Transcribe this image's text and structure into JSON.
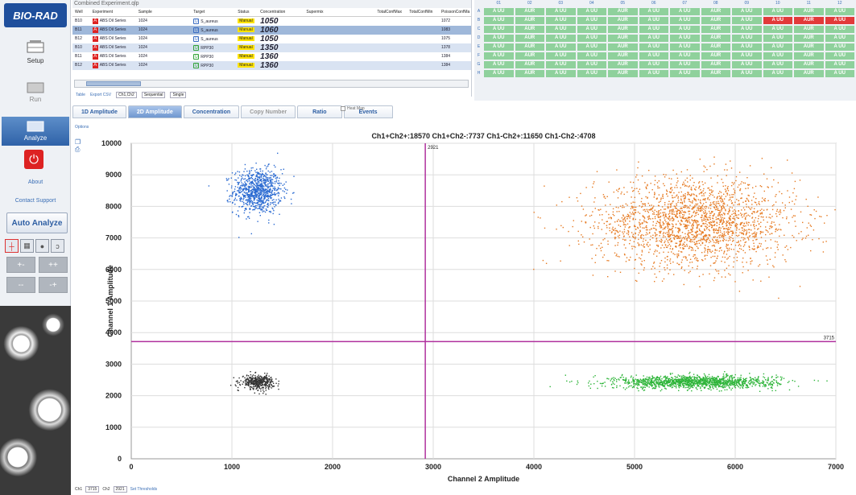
{
  "app": {
    "logo": "BIO-RAD"
  },
  "nav": {
    "setup": "Setup",
    "run": "Run",
    "analyze": "Analyze",
    "about": "About",
    "contact": "Contact Support",
    "auto_analyze": "Auto Analyze"
  },
  "quadrant_buttons": [
    "+-",
    "++",
    "--",
    "-+"
  ],
  "table": {
    "title": "Combined Experiment.qlp",
    "headers": [
      "Well",
      "Experiment",
      "Sample",
      "Target",
      "Status",
      "Concentration",
      "Supermix",
      "TotalConfMax",
      "TotalConfMin",
      "PoissonConfMa"
    ],
    "rows": [
      {
        "well": "B10",
        "experiment": "ABS Dil Series",
        "sample": "1024",
        "target": "S_aureus",
        "status": "Manual",
        "concentration": "1050",
        "poisson": "1072",
        "target_color": "blue"
      },
      {
        "well": "B11",
        "experiment": "ABS Dil Series",
        "sample": "1024",
        "target": "S_aureus",
        "status": "Manual",
        "concentration": "1060",
        "poisson": "1083",
        "target_color": "blue"
      },
      {
        "well": "B12",
        "experiment": "ABS Dil Series",
        "sample": "1024",
        "target": "S_aureus",
        "status": "Manual",
        "concentration": "1050",
        "poisson": "1075",
        "target_color": "blue"
      },
      {
        "well": "B10",
        "experiment": "ABS Dil Series",
        "sample": "1024",
        "target": "RPP30",
        "status": "Manual",
        "concentration": "1350",
        "poisson": "1378",
        "target_color": "green"
      },
      {
        "well": "B11",
        "experiment": "ABS Dil Series",
        "sample": "1024",
        "target": "RPP30",
        "status": "Manual",
        "concentration": "1360",
        "poisson": "1384",
        "target_color": "green"
      },
      {
        "well": "B12",
        "experiment": "ABS Dil Series",
        "sample": "1024",
        "target": "RPP30",
        "status": "Manual",
        "concentration": "1360",
        "poisson": "1384",
        "target_color": "green"
      }
    ],
    "options": {
      "table": "Table",
      "export": "Export CSV",
      "channels": "Ch1,Ch2",
      "mode": "Sequential",
      "single": "Single"
    }
  },
  "plate": {
    "rows": [
      "A",
      "B",
      "C",
      "D",
      "E",
      "F",
      "G",
      "H"
    ],
    "cols": [
      "01",
      "02",
      "03",
      "04",
      "05",
      "06",
      "07",
      "08",
      "09",
      "10",
      "11",
      "12"
    ]
  },
  "tabs": [
    "1D Amplitude",
    "2D Amplitude",
    "Concentration",
    "Copy Number",
    "Ratio",
    "Events"
  ],
  "heat_map": "Heat Map",
  "options_label": "Options",
  "chart_data": {
    "type": "scatter",
    "title": "Ch1+Ch2+:18570  Ch1+Ch2-:7737  Ch1-Ch2+:11650  Ch1-Ch2-:4708",
    "xlabel": "Channel 2 Amplitude",
    "ylabel": "Channel 1 Amplitude",
    "xlim": [
      0,
      7000
    ],
    "ylim": [
      0,
      10000
    ],
    "xticks": [
      "0",
      "1000",
      "2000",
      "3000",
      "4000",
      "5000",
      "6000",
      "7000"
    ],
    "yticks": [
      "0",
      "1000",
      "2000",
      "3000",
      "4000",
      "5000",
      "6000",
      "7000",
      "8000",
      "9000",
      "10000"
    ],
    "threshold_x": 2921,
    "threshold_y": 3715,
    "threshold_x_label": "2921",
    "threshold_y_label": "3715",
    "grid": true,
    "clusters": [
      {
        "name": "Ch1+Ch2-",
        "color": "#2a6ad1",
        "center": [
          1250,
          8500
        ],
        "spread": [
          120,
          350
        ],
        "count": 900
      },
      {
        "name": "Ch1+Ch2+",
        "color": "#e67a22",
        "center": [
          5600,
          7500
        ],
        "spread": [
          500,
          700
        ],
        "count": 2200
      },
      {
        "name": "Ch1-Ch2-",
        "color": "#333333",
        "center": [
          1250,
          2450
        ],
        "spread": [
          80,
          110
        ],
        "count": 400
      },
      {
        "name": "Ch1-Ch2+",
        "color": "#2fb53a",
        "center": [
          5600,
          2450
        ],
        "spread": [
          400,
          100
        ],
        "count": 1400
      }
    ]
  },
  "footer": {
    "ch1_label": "Ch1",
    "ch1_value": "3715",
    "ch2_label": "Ch2",
    "ch2_value": "2921",
    "set_thresholds": "Set Thresholds"
  }
}
